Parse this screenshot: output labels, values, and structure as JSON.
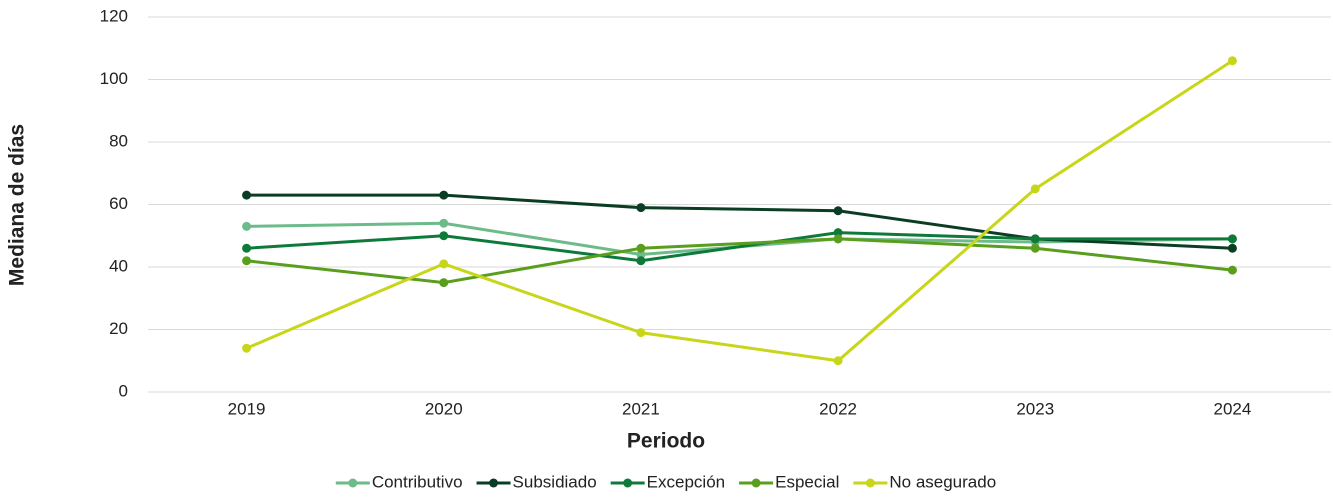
{
  "chart_data": {
    "type": "line",
    "x_label": "Periodo",
    "y_label": "Mediana de días",
    "categories": [
      "2019",
      "2020",
      "2021",
      "2022",
      "2023",
      "2024"
    ],
    "series": [
      {
        "name": "Contributivo",
        "color": "#6dbb8a",
        "values": [
          53,
          54,
          44,
          49,
          48,
          49
        ]
      },
      {
        "name": "Subsidiado",
        "color": "#0b3d24",
        "values": [
          63,
          63,
          59,
          58,
          49,
          46
        ]
      },
      {
        "name": "Excepción",
        "color": "#0e7a3a",
        "values": [
          46,
          50,
          42,
          51,
          49,
          49
        ]
      },
      {
        "name": "Especial",
        "color": "#5a9e1e",
        "values": [
          42,
          35,
          46,
          49,
          46,
          39
        ]
      },
      {
        "name": "No asegurado",
        "color": "#c8d61a",
        "values": [
          14,
          41,
          19,
          10,
          65,
          106
        ]
      }
    ],
    "ylim": [
      0,
      120
    ],
    "yticks": [
      0,
      20,
      40,
      60,
      80,
      100,
      120
    ],
    "grid": true,
    "legend": "bottom"
  }
}
